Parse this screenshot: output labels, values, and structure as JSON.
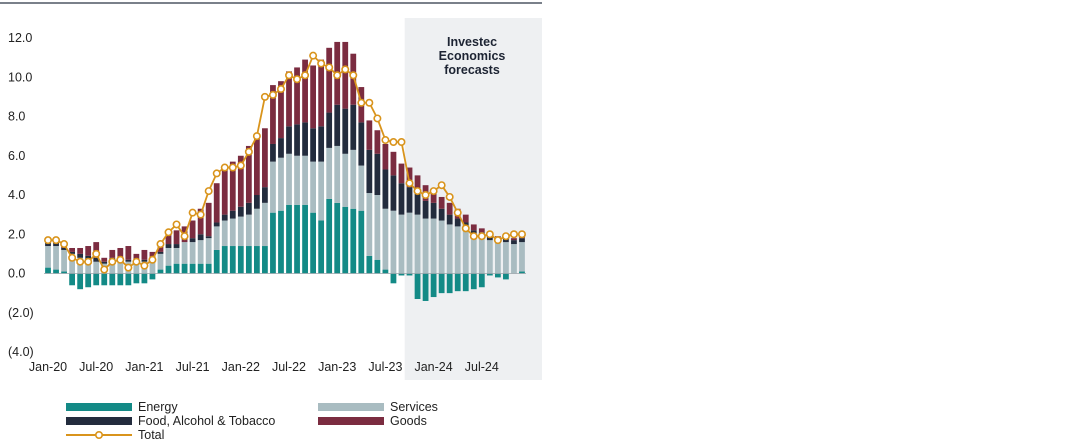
{
  "chart_data": {
    "type": "bar",
    "stacked": true,
    "forecast_label": [
      "Investec",
      "Economics",
      "forecasts"
    ],
    "y_tick_labels": [
      "12.0",
      "10.0",
      "8.0",
      "6.0",
      "4.0",
      "2.0",
      "0.0",
      "(2.0)",
      "(4.0)"
    ],
    "y_ticks": [
      12,
      10,
      8,
      6,
      4,
      2,
      0,
      -2,
      -4
    ],
    "ylim": [
      -4,
      12
    ],
    "x_tick_labels": [
      "Jan-20",
      "Jul-20",
      "Jan-21",
      "Jul-21",
      "Jan-22",
      "Jul-22",
      "Jan-23",
      "Jul-23",
      "Jan-24",
      "Jul-24"
    ],
    "x_tick_index": [
      0,
      6,
      12,
      18,
      24,
      30,
      36,
      42,
      48,
      54
    ],
    "months_count": 60,
    "forecast_start_index": 45,
    "colors": {
      "energy": "#138a86",
      "services": "#a9bcc1",
      "food": "#232c3d",
      "goods": "#7b2c40",
      "total": "#d9941c",
      "forecast_bg": "#eef0f2"
    },
    "legend": {
      "energy": "Energy",
      "services": "Services",
      "food": "Food, Alcohol & Tobacco",
      "goods": "Goods",
      "total": "Total"
    },
    "series": [
      {
        "key": "energy",
        "name": "Energy",
        "values": [
          0.3,
          0.2,
          0.1,
          -0.6,
          -0.8,
          -0.7,
          -0.6,
          -0.6,
          -0.6,
          -0.6,
          -0.6,
          -0.5,
          -0.5,
          -0.3,
          0.2,
          0.4,
          0.5,
          0.5,
          0.5,
          0.5,
          0.5,
          1.2,
          1.4,
          1.4,
          1.4,
          1.4,
          1.4,
          1.4,
          3.1,
          3.2,
          3.5,
          3.5,
          3.5,
          3.1,
          2.7,
          3.8,
          3.6,
          3.4,
          3.3,
          3.2,
          0.9,
          0.7,
          0.2,
          -0.5,
          -0.1,
          -0.1,
          -1.3,
          -1.4,
          -1.2,
          -1.0,
          -1.0,
          -0.9,
          -0.9,
          -0.8,
          -0.7,
          -0.1,
          -0.2,
          -0.3,
          0.0,
          0.1
        ]
      },
      {
        "key": "services",
        "name": "Services",
        "values": [
          1.1,
          1.2,
          1.1,
          1.0,
          0.8,
          0.7,
          0.6,
          0.5,
          0.6,
          0.6,
          0.6,
          0.5,
          0.6,
          0.6,
          0.8,
          0.9,
          0.8,
          1.1,
          1.1,
          1.2,
          1.3,
          1.2,
          1.3,
          1.4,
          1.5,
          1.6,
          1.9,
          2.2,
          2.6,
          2.7,
          2.6,
          2.5,
          2.5,
          2.6,
          3.0,
          2.6,
          2.9,
          2.7,
          3.0,
          2.3,
          3.2,
          3.3,
          3.1,
          3.2,
          3.0,
          3.1,
          3.0,
          2.8,
          2.8,
          2.7,
          2.5,
          2.4,
          2.3,
          1.9,
          1.8,
          1.7,
          1.6,
          1.6,
          1.5,
          1.5
        ]
      },
      {
        "key": "food",
        "name": "Food, Alcohol & Tobacco",
        "values": [
          0.2,
          0.2,
          0.1,
          0.1,
          0.2,
          0.2,
          0.2,
          0.1,
          0.2,
          0.1,
          0.1,
          0.1,
          0.1,
          0.1,
          0.1,
          0.2,
          0.2,
          0.0,
          0.2,
          0.3,
          0.1,
          0.2,
          0.3,
          0.4,
          0.5,
          0.6,
          0.7,
          0.8,
          0.9,
          1.0,
          1.4,
          1.6,
          1.7,
          1.7,
          1.8,
          1.8,
          2.1,
          2.3,
          2.3,
          2.2,
          2.2,
          2.1,
          2.0,
          1.8,
          1.6,
          1.3,
          1.1,
          0.9,
          0.8,
          0.6,
          0.5,
          0.4,
          0.3,
          0.3,
          0.3,
          0.2,
          0.2,
          0.2,
          0.2,
          0.2
        ]
      },
      {
        "key": "goods",
        "name": "Goods",
        "values": [
          0.1,
          0.1,
          0.2,
          0.2,
          0.3,
          0.5,
          0.8,
          0.2,
          0.4,
          0.6,
          0.7,
          0.4,
          0.5,
          0.4,
          0.3,
          0.5,
          0.7,
          0.8,
          0.9,
          1.3,
          1.7,
          2.0,
          2.4,
          2.5,
          2.6,
          2.9,
          3.0,
          3.0,
          3.0,
          2.9,
          2.8,
          2.9,
          3.2,
          3.2,
          3.4,
          3.3,
          3.2,
          3.4,
          2.6,
          1.8,
          1.5,
          1.2,
          1.3,
          1.2,
          1.0,
          1.0,
          0.9,
          0.8,
          0.6,
          0.6,
          0.6,
          0.5,
          0.4,
          0.3,
          0.2,
          0.1,
          0.1,
          0.1,
          0.1,
          0.1
        ]
      },
      {
        "key": "total",
        "name": "Total",
        "values": [
          1.7,
          1.7,
          1.5,
          0.8,
          0.6,
          0.6,
          1.0,
          0.2,
          0.6,
          0.7,
          0.3,
          0.6,
          0.4,
          0.7,
          1.5,
          2.1,
          2.5,
          1.9,
          3.1,
          3.0,
          4.2,
          5.1,
          5.4,
          5.4,
          5.5,
          6.2,
          7.0,
          9.0,
          9.1,
          9.4,
          10.1,
          9.9,
          10.1,
          11.1,
          10.7,
          10.5,
          10.1,
          10.4,
          10.1,
          8.7,
          8.7,
          7.9,
          6.8,
          6.7,
          6.7,
          4.6,
          4.2,
          4.0,
          4.2,
          4.5,
          3.9,
          3.1,
          2.3,
          1.9,
          1.9,
          2.0,
          1.7,
          1.9,
          2.0,
          2.0
        ]
      }
    ]
  }
}
